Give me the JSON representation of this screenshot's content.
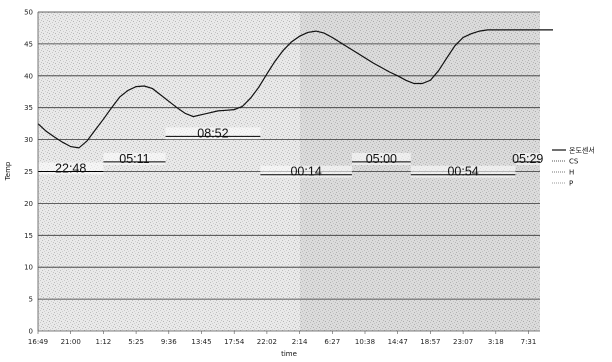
{
  "chart_data": {
    "type": "line",
    "xlabel": "time",
    "ylabel": "Temp",
    "ylim": [
      0,
      50
    ],
    "y_ticks": [
      0,
      5,
      10,
      15,
      20,
      25,
      30,
      35,
      40,
      45,
      50
    ],
    "x_tick_labels": [
      "16:49",
      "21:00",
      "1:12",
      "5:25",
      "9:36",
      "13:45",
      "17:54",
      "22:02",
      "2:14",
      "6:27",
      "10:38",
      "14:47",
      "18:57",
      "23:07",
      "3:18",
      "7:31"
    ],
    "grid": true,
    "legend_position": "right",
    "legend": [
      "온도센서",
      "CS",
      "H",
      "P"
    ],
    "series": [
      {
        "name": "온도센서",
        "x": [
          0,
          0.25,
          0.5,
          0.75,
          1,
          1.25,
          1.5,
          1.75,
          2,
          2.25,
          2.5,
          2.75,
          3,
          3.25,
          3.5,
          3.75,
          4,
          4.25,
          4.5,
          4.75,
          5,
          5.25,
          5.5,
          5.75,
          6,
          6.25,
          6.5,
          6.75,
          7,
          7.25,
          7.5,
          7.75,
          8,
          8.25,
          8.5,
          8.75,
          9,
          9.25,
          9.5,
          9.75,
          10,
          10.25,
          10.5,
          10.75,
          11,
          11.25,
          11.5,
          11.75,
          12,
          12.25,
          12.5,
          12.75,
          13,
          13.25,
          13.5,
          13.75,
          14,
          14.25,
          14.5,
          14.75,
          15,
          15.25,
          15.5,
          15.75
        ],
        "values": [
          32.5,
          31.3,
          30.4,
          29.6,
          28.9,
          28.7,
          29.8,
          31.5,
          33.2,
          35.0,
          36.7,
          37.7,
          38.3,
          38.4,
          38.0,
          37.0,
          36.0,
          35.0,
          34.1,
          33.6,
          33.9,
          34.2,
          34.5,
          34.6,
          34.7,
          35.2,
          36.5,
          38.2,
          40.3,
          42.3,
          44.0,
          45.3,
          46.2,
          46.8,
          47.0,
          46.7,
          46.0,
          45.2,
          44.4,
          43.6,
          42.8,
          42.0,
          41.3,
          40.6,
          40.0,
          39.3,
          38.8,
          38.8,
          39.3,
          40.8,
          42.8,
          44.7,
          46.0,
          46.6,
          47.0,
          47.2,
          47.2,
          47.2,
          47.2,
          47.2,
          47.2,
          47.2,
          47.2,
          47.2
        ],
        "color": "#111111"
      },
      {
        "name": "CS",
        "values": [],
        "color": "#555555"
      },
      {
        "name": "H",
        "values": [],
        "color": "#777777"
      },
      {
        "name": "P",
        "values": [],
        "color": "#999999"
      }
    ],
    "phase_bands": [
      {
        "x_start": 0,
        "x_end": 2,
        "level": 25,
        "label": "22:48"
      },
      {
        "x_start": 2,
        "x_end": 3.9,
        "level": 26.5,
        "label": "05:11"
      },
      {
        "x_start": 3.9,
        "x_end": 6.8,
        "level": 30.5,
        "label": "08:52"
      },
      {
        "x_start": 6.8,
        "x_end": 9.6,
        "level": 24.5,
        "label": "00:14"
      },
      {
        "x_start": 9.6,
        "x_end": 11.4,
        "level": 26.5,
        "label": "05:00"
      },
      {
        "x_start": 11.4,
        "x_end": 14.6,
        "level": 24.5,
        "label": "00:54"
      },
      {
        "x_start": 14.6,
        "x_end": 16,
        "level": 26.5,
        "label": "05:29"
      }
    ]
  }
}
